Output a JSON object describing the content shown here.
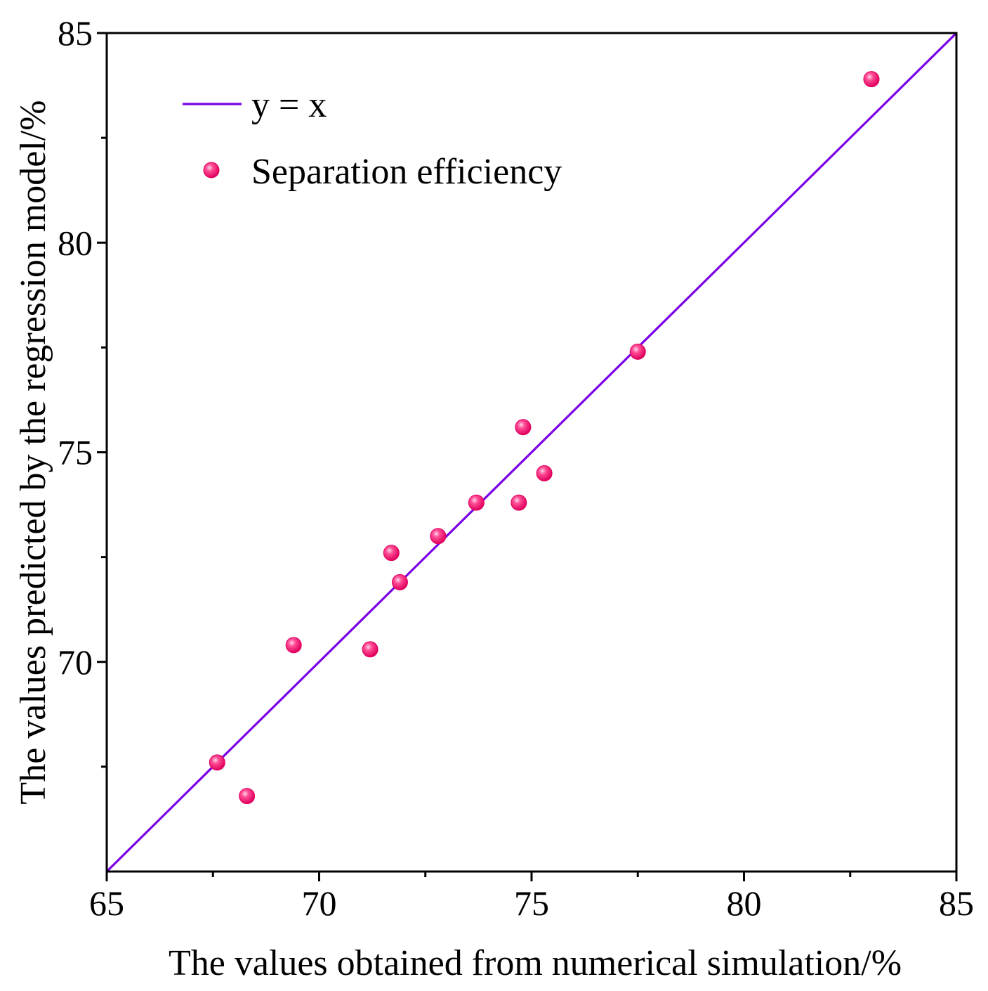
{
  "chart_data": {
    "type": "scatter",
    "title": "",
    "xlabel": "The values obtained from numerical simulation/%",
    "ylabel": "The values predicted by the regression model/%",
    "xlim": [
      65,
      85
    ],
    "ylim": [
      65,
      85
    ],
    "xticks": [
      65,
      70,
      75,
      80,
      85
    ],
    "yticks": [
      70,
      75,
      80,
      85
    ],
    "minor_ticks_x": [
      67.5,
      72.5,
      77.5,
      82.5
    ],
    "minor_ticks_y": [
      67.5,
      72.5,
      77.5,
      82.5
    ],
    "grid": false,
    "legend_position": "top-left",
    "series": [
      {
        "name": "y = x",
        "kind": "line",
        "color": "#7a00e6",
        "x": [
          65,
          85
        ],
        "y": [
          65,
          85
        ]
      },
      {
        "name": "Separation efficiency",
        "kind": "scatter",
        "color": "#ff1f7a",
        "x": [
          67.6,
          68.3,
          69.4,
          71.2,
          71.7,
          71.9,
          72.8,
          73.7,
          74.7,
          74.8,
          75.3,
          77.5,
          83.0
        ],
        "y": [
          67.6,
          66.8,
          70.4,
          70.3,
          72.6,
          71.9,
          73.0,
          73.8,
          73.8,
          75.6,
          74.5,
          77.4,
          83.9
        ]
      }
    ]
  }
}
